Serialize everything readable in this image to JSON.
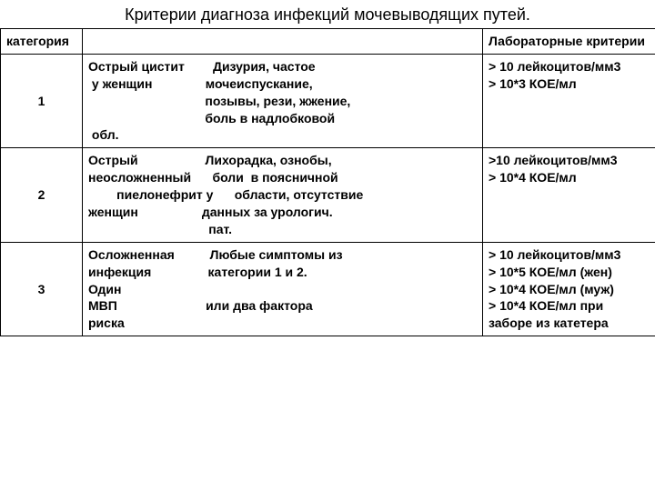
{
  "title": "Критерии диагноза инфекций мочевыводящих путей.",
  "header": {
    "cat": "категория",
    "desc": "",
    "lab": "Лабораторные критерии"
  },
  "rows": [
    {
      "cat": "1",
      "desc": "Острый цистит        Дизурия, частое\n у женщин               мочеиспускание,\n                                 позывы, рези, жжение,\n                                 боль в надлобковой\n обл.",
      "lab": "> 10 лейкоцитов/мм3\n> 10*3 КОЕ/мл"
    },
    {
      "cat": "2",
      "desc": "Острый                   Лихорадка, ознобы,\nнеосложненный      боли  в поясничной\n        пиелонефрит у      области, отсутствие\nженщин                  данных за урологич.\n                                  пат.",
      "lab": ">10 лейкоцитов/мм3\n> 10*4 КОЕ/мл"
    },
    {
      "cat": "3",
      "desc": "Осложненная          Любые симптомы из\nинфекция                категории 1 и 2.\nОдин\nМВП                         или два фактора\nриска",
      "lab": "> 10 лейкоцитов/мм3\n> 10*5 КОЕ/мл (жен)\n> 10*4 КОЕ/мл (муж)\n> 10*4 КОЕ/мл при\nзаборе из катетера"
    }
  ]
}
